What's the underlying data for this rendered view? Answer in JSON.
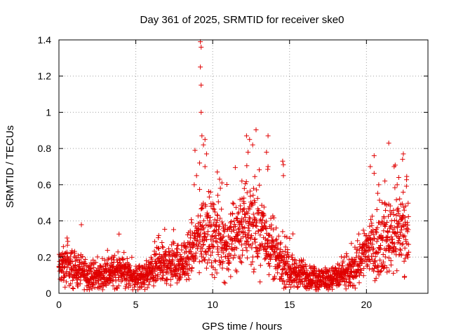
{
  "chart_data": {
    "type": "scatter",
    "title": "Day 361 of 2025, SRMTID for receiver ske0",
    "xlabel": "GPS time / hours",
    "ylabel": "SRMTID / TECUs",
    "xlim": [
      0,
      24
    ],
    "ylim": [
      0,
      1.4
    ],
    "x_ticks": [
      0,
      5,
      10,
      15,
      20
    ],
    "x_tick_labels": [
      "0",
      "5",
      "10",
      "15",
      "20"
    ],
    "y_ticks": [
      0,
      0.2,
      0.4,
      0.6,
      0.8,
      1,
      1.2,
      1.4
    ],
    "y_tick_labels": [
      "0",
      "0.2",
      "0.4",
      "0.6",
      "0.8",
      "1",
      "1.2",
      "1.4"
    ],
    "grid": true,
    "marker": "+",
    "color": "#e00000",
    "series": [
      {
        "name": "SRMTID",
        "profile": [
          [
            0.0,
            0.14
          ],
          [
            0.5,
            0.15
          ],
          [
            1.0,
            0.13
          ],
          [
            1.5,
            0.12
          ],
          [
            2.0,
            0.1
          ],
          [
            2.5,
            0.09
          ],
          [
            3.0,
            0.11
          ],
          [
            3.5,
            0.12
          ],
          [
            4.0,
            0.13
          ],
          [
            4.5,
            0.11
          ],
          [
            5.0,
            0.08
          ],
          [
            5.5,
            0.09
          ],
          [
            6.0,
            0.12
          ],
          [
            6.5,
            0.15
          ],
          [
            7.0,
            0.16
          ],
          [
            7.5,
            0.17
          ],
          [
            8.0,
            0.16
          ],
          [
            8.5,
            0.2
          ],
          [
            9.0,
            0.3
          ],
          [
            9.5,
            0.35
          ],
          [
            10.0,
            0.32
          ],
          [
            10.5,
            0.3
          ],
          [
            11.0,
            0.25
          ],
          [
            11.5,
            0.33
          ],
          [
            12.0,
            0.38
          ],
          [
            12.5,
            0.4
          ],
          [
            13.0,
            0.35
          ],
          [
            13.5,
            0.3
          ],
          [
            14.0,
            0.22
          ],
          [
            14.5,
            0.15
          ],
          [
            15.0,
            0.13
          ],
          [
            15.5,
            0.11
          ],
          [
            16.0,
            0.1
          ],
          [
            16.5,
            0.08
          ],
          [
            17.0,
            0.08
          ],
          [
            17.5,
            0.08
          ],
          [
            18.0,
            0.09
          ],
          [
            18.5,
            0.1
          ],
          [
            19.0,
            0.11
          ],
          [
            19.5,
            0.18
          ],
          [
            20.0,
            0.25
          ],
          [
            20.5,
            0.25
          ],
          [
            21.0,
            0.28
          ],
          [
            21.5,
            0.32
          ],
          [
            22.0,
            0.35
          ],
          [
            22.5,
            0.35
          ]
        ],
        "x_end": 22.75,
        "samples_per_hour": 100,
        "peak_points": [
          [
            9.2,
            1.39
          ],
          [
            9.25,
            1.36
          ],
          [
            9.2,
            1.25
          ],
          [
            9.25,
            1.15
          ],
          [
            9.25,
            1.0
          ],
          [
            9.3,
            0.87
          ],
          [
            9.5,
            0.85
          ],
          [
            8.85,
            0.79
          ],
          [
            9.4,
            0.82
          ],
          [
            9.6,
            0.77
          ],
          [
            9.15,
            0.72
          ],
          [
            9.5,
            0.7
          ],
          [
            12.2,
            0.87
          ],
          [
            12.4,
            0.85
          ],
          [
            12.6,
            0.82
          ],
          [
            12.3,
            0.78
          ],
          [
            13.6,
            0.87
          ],
          [
            13.5,
            0.78
          ],
          [
            13.6,
            0.7
          ],
          [
            14.55,
            0.73
          ],
          [
            14.6,
            0.71
          ],
          [
            14.6,
            0.65
          ],
          [
            20.25,
            0.7
          ],
          [
            20.5,
            0.76
          ],
          [
            21.45,
            0.83
          ],
          [
            22.4,
            0.77
          ],
          [
            22.35,
            0.74
          ],
          [
            21.8,
            0.7
          ],
          [
            22.1,
            0.64
          ],
          [
            10.3,
            0.67
          ],
          [
            10.6,
            0.61
          ],
          [
            10.5,
            0.58
          ],
          [
            11.9,
            0.62
          ],
          [
            8.8,
            0.6
          ],
          [
            8.95,
            0.65
          ],
          [
            20.8,
            0.6
          ],
          [
            21.2,
            0.62
          ],
          [
            22.0,
            0.6
          ]
        ]
      }
    ]
  }
}
